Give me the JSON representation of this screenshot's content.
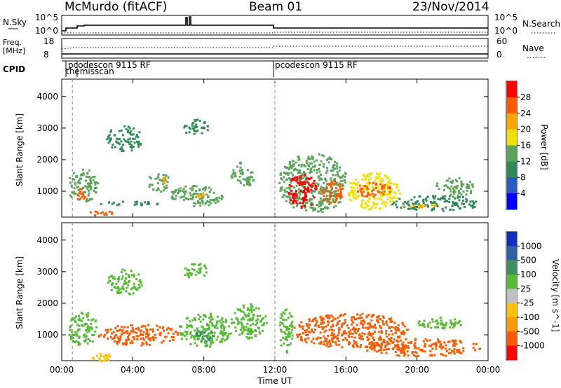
{
  "header": {
    "station": "McMurdo (fitACF)",
    "beam": "Beam 01",
    "date": "23/Nov/2014"
  },
  "summary_panels": {
    "nsky": {
      "label": "N.Sky",
      "ticks": [
        "10^5",
        "10^0"
      ]
    },
    "nsearch": {
      "label": "N.Search",
      "ticks": [
        "10^5",
        "10^0"
      ]
    },
    "freq": {
      "label_line1": "Freq.",
      "label_line2": "[MHz]",
      "ticks": [
        "18",
        "8"
      ]
    },
    "nave": {
      "label": "Nave",
      "ticks": [
        "60",
        "0"
      ]
    },
    "cpid": {
      "label": "CPID",
      "segments": [
        "pcodescon 9115 RF",
        "themisscan",
        "pcodescon 9115 RF"
      ]
    }
  },
  "colors": {
    "power": [
      "#0000ff",
      "#2a5cc8",
      "#2e8b57",
      "#5aa55a",
      "#f0e000",
      "#ffa500",
      "#ff5a00",
      "#ff0000"
    ],
    "velocity": [
      "#ff0000",
      "#ff5a00",
      "#ff9a00",
      "#ffc000",
      "#c0c0c0",
      "#55bb33",
      "#3d8f60",
      "#3060a8",
      "#1030c0"
    ]
  },
  "chart_data": [
    {
      "type": "heatmap",
      "name": "power",
      "ylabel": "Slant Range [km]",
      "ylim": [
        180,
        4550
      ],
      "yticks": [
        "1000",
        "2000",
        "3000",
        "4000"
      ],
      "xlim": [
        0,
        24
      ],
      "xticks": [
        "00:00",
        "04:00",
        "08:00",
        "12:00",
        "16:00",
        "20:00",
        "00:00"
      ],
      "colorbar": {
        "label": "Power [dB]",
        "ticks": [
          "28",
          "24",
          "20",
          "16",
          "12",
          "8",
          "4"
        ],
        "range": [
          0,
          32
        ]
      },
      "patches": [
        {
          "x": [
            0.3,
            2.0
          ],
          "y": [
            650,
            1750
          ],
          "level": 12
        },
        {
          "x": [
            0.7,
            1.4
          ],
          "y": [
            750,
            1150
          ],
          "level": 26
        },
        {
          "x": [
            1.2,
            3.0
          ],
          "y": [
            250,
            400
          ],
          "level": 26
        },
        {
          "x": [
            2.0,
            5.5
          ],
          "y": [
            580,
            700
          ],
          "level": 8
        },
        {
          "x": [
            4.8,
            6.0
          ],
          "y": [
            1000,
            1650
          ],
          "level": 14
        },
        {
          "x": [
            5.3,
            5.8
          ],
          "y": [
            1250,
            1500
          ],
          "level": 22
        },
        {
          "x": [
            6.0,
            9.0
          ],
          "y": [
            550,
            1200
          ],
          "level": 14
        },
        {
          "x": [
            7.2,
            8.0
          ],
          "y": [
            850,
            1000
          ],
          "level": 20
        },
        {
          "x": [
            9.5,
            10.8
          ],
          "y": [
            1100,
            1950
          ],
          "level": 14
        },
        {
          "x": [
            2.5,
            4.5
          ],
          "y": [
            2300,
            3100
          ],
          "level": 8
        },
        {
          "x": [
            6.8,
            8.2
          ],
          "y": [
            2800,
            3300
          ],
          "level": 8
        },
        {
          "x": [
            12.2,
            16.0
          ],
          "y": [
            350,
            2200
          ],
          "level": 14
        },
        {
          "x": [
            12.7,
            14.3
          ],
          "y": [
            500,
            1600
          ],
          "level": 28
        },
        {
          "x": [
            14.5,
            15.8
          ],
          "y": [
            650,
            1400
          ],
          "level": 24
        },
        {
          "x": [
            16.0,
            19.0
          ],
          "y": [
            450,
            1600
          ],
          "level": 16
        },
        {
          "x": [
            16.5,
            18.5
          ],
          "y": [
            850,
            1300
          ],
          "level": 26
        },
        {
          "x": [
            18.5,
            23.5
          ],
          "y": [
            400,
            900
          ],
          "level": 10
        },
        {
          "x": [
            19.0,
            21.0
          ],
          "y": [
            500,
            620
          ],
          "level": 22
        },
        {
          "x": [
            21.0,
            23.2
          ],
          "y": [
            850,
            1450
          ],
          "level": 12
        }
      ]
    },
    {
      "type": "heatmap",
      "name": "velocity",
      "ylabel": "Slant Range [km]",
      "xlabel": "Time UT",
      "ylim": [
        180,
        4550
      ],
      "yticks": [
        "1000",
        "2000",
        "3000",
        "4000"
      ],
      "xlim": [
        0,
        24
      ],
      "xticks": [
        "00:00",
        "04:00",
        "08:00",
        "12:00",
        "16:00",
        "20:00",
        "00:00"
      ],
      "colorbar": {
        "label": "Velocity [m s^-1]",
        "ticks": [
          "1000",
          "500",
          "100",
          "25",
          "-25",
          "-100",
          "-500",
          "-1000"
        ]
      },
      "patches": [
        {
          "x": [
            0.3,
            2.0
          ],
          "y": [
            700,
            1750
          ],
          "v": 120
        },
        {
          "x": [
            1.5,
            3.0
          ],
          "y": [
            180,
            450
          ],
          "v": 0
        },
        {
          "x": [
            2.0,
            6.5
          ],
          "y": [
            700,
            1350
          ],
          "v": -150
        },
        {
          "x": [
            6.5,
            9.5
          ],
          "y": [
            650,
            1700
          ],
          "v": 300
        },
        {
          "x": [
            7.5,
            8.5
          ],
          "y": [
            800,
            1200
          ],
          "v": 700
        },
        {
          "x": [
            9.5,
            11.5
          ],
          "y": [
            900,
            2000
          ],
          "v": 300
        },
        {
          "x": [
            12.2,
            13.0
          ],
          "y": [
            450,
            1900
          ],
          "v": 120
        },
        {
          "x": [
            13.0,
            19.5
          ],
          "y": [
            600,
            1700
          ],
          "v": -150
        },
        {
          "x": [
            17.0,
            23.5
          ],
          "y": [
            350,
            900
          ],
          "v": -150
        },
        {
          "x": [
            20.0,
            22.5
          ],
          "y": [
            1200,
            1600
          ],
          "v": 200
        },
        {
          "x": [
            2.5,
            4.5
          ],
          "y": [
            2300,
            3100
          ],
          "v": 200
        },
        {
          "x": [
            6.8,
            8.2
          ],
          "y": [
            2800,
            3300
          ],
          "v": 400
        }
      ]
    }
  ]
}
